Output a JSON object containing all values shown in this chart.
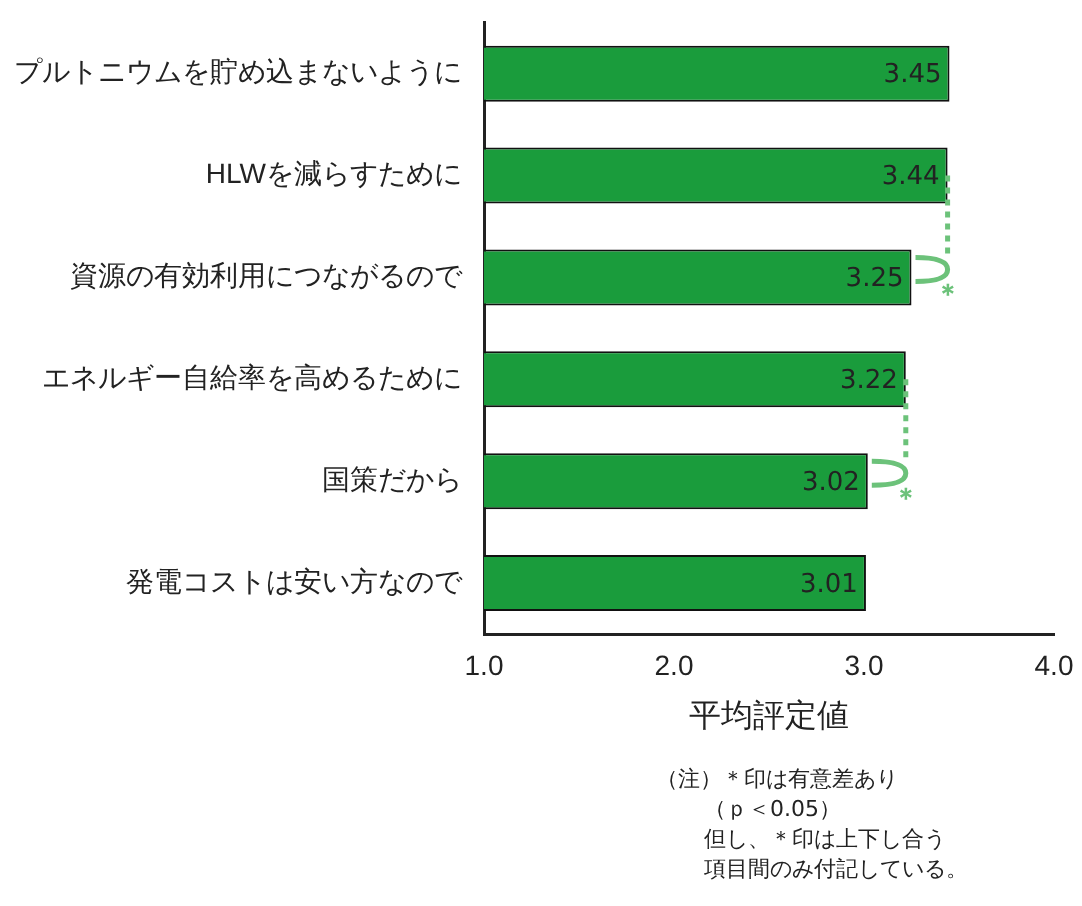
{
  "chart_data": {
    "type": "bar",
    "orientation": "horizontal",
    "xlabel": "平均評定値",
    "categories": [
      "プルトニウムを貯め込まないように",
      "HLWを減らすために",
      "資源の有効利用につながるので",
      "エネルギー自給率を高めるために",
      "国策だから",
      "発電コストは安い方なので"
    ],
    "values": [
      3.45,
      3.44,
      3.25,
      3.22,
      3.02,
      3.01
    ],
    "color": "#1a9c3c",
    "data_labels": true,
    "xlim": [
      1,
      4
    ],
    "xticks": [
      {
        "value": 1,
        "label": "1.0"
      },
      {
        "value": 2,
        "label": "2.0"
      },
      {
        "value": 3,
        "label": "3.0"
      },
      {
        "value": 4,
        "label": "4.0"
      }
    ],
    "grid": false,
    "legend": false,
    "annotations": [
      {
        "text": "＊",
        "x": 3.44,
        "y": "HLWを減らすために"
      },
      {
        "text": "＊",
        "x": 3.22,
        "y": "エネルギー自給率を高めるために"
      },
      "（注）＊印は有意差あり",
      "（ｐ＜0.05）",
      "但し、＊印は上下し合う",
      "項目間のみ付記している。"
    ]
  }
}
